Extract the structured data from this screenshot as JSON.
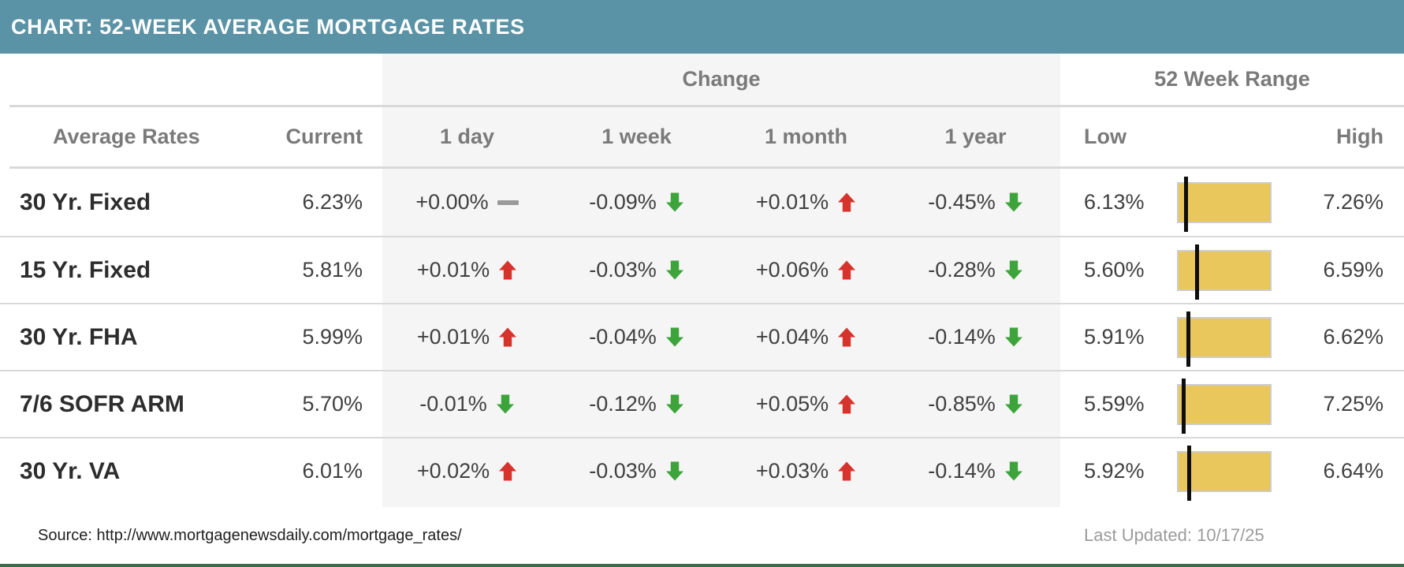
{
  "title": "CHART: 52-WEEK AVERAGE MORTGAGE RATES",
  "colors": {
    "header_bg": "#5a92a6",
    "panel_gray": "#f5f5f5",
    "line_gray": "#d9d9d9",
    "header_text": "#7a7a7a",
    "value_text": "#404040",
    "up_red": "#d7332d",
    "down_green": "#3da43b",
    "flat_dash_gray": "#9a9a9a",
    "range_bar_yellow": "#e9c75c",
    "bottom_rule_green": "#3a6b4b",
    "muted_text": "#9b9b9b"
  },
  "table": {
    "group_headers": {
      "change": "Change",
      "range": "52 Week Range"
    },
    "columns": {
      "name": "Average Rates",
      "current": "Current",
      "day": "1 day",
      "week": "1 week",
      "month": "1 month",
      "year": "1 year",
      "low": "Low",
      "high": "High"
    },
    "rows": [
      {
        "name": "30 Yr. Fixed",
        "current": "6.23%",
        "current_value": 6.23,
        "changes": [
          {
            "value": "+0.00%",
            "dir": "flat"
          },
          {
            "value": "-0.09%",
            "dir": "down"
          },
          {
            "value": "+0.01%",
            "dir": "up"
          },
          {
            "value": "-0.45%",
            "dir": "down"
          }
        ],
        "low": "6.13%",
        "low_value": 6.13,
        "high": "7.26%",
        "high_value": 7.26
      },
      {
        "name": "15 Yr. Fixed",
        "current": "5.81%",
        "current_value": 5.81,
        "changes": [
          {
            "value": "+0.01%",
            "dir": "up"
          },
          {
            "value": "-0.03%",
            "dir": "down"
          },
          {
            "value": "+0.06%",
            "dir": "up"
          },
          {
            "value": "-0.28%",
            "dir": "down"
          }
        ],
        "low": "5.60%",
        "low_value": 5.6,
        "high": "6.59%",
        "high_value": 6.59
      },
      {
        "name": "30 Yr. FHA",
        "current": "5.99%",
        "current_value": 5.99,
        "changes": [
          {
            "value": "+0.01%",
            "dir": "up"
          },
          {
            "value": "-0.04%",
            "dir": "down"
          },
          {
            "value": "+0.04%",
            "dir": "up"
          },
          {
            "value": "-0.14%",
            "dir": "down"
          }
        ],
        "low": "5.91%",
        "low_value": 5.91,
        "high": "6.62%",
        "high_value": 6.62
      },
      {
        "name": "7/6 SOFR ARM",
        "current": "5.70%",
        "current_value": 5.7,
        "changes": [
          {
            "value": "-0.01%",
            "dir": "down"
          },
          {
            "value": "-0.12%",
            "dir": "down"
          },
          {
            "value": "+0.05%",
            "dir": "up"
          },
          {
            "value": "-0.85%",
            "dir": "down"
          }
        ],
        "low": "5.59%",
        "low_value": 5.59,
        "high": "7.25%",
        "high_value": 7.25
      },
      {
        "name": "30 Yr. VA",
        "current": "6.01%",
        "current_value": 6.01,
        "changes": [
          {
            "value": "+0.02%",
            "dir": "up"
          },
          {
            "value": "-0.03%",
            "dir": "down"
          },
          {
            "value": "+0.03%",
            "dir": "up"
          },
          {
            "value": "-0.14%",
            "dir": "down"
          }
        ],
        "low": "5.92%",
        "low_value": 5.92,
        "high": "6.64%",
        "high_value": 6.64
      }
    ]
  },
  "footer": {
    "source": "Source: http://www.mortgagenewsdaily.com/mortgage_rates/",
    "last_updated": "Last Updated: 10/17/25"
  },
  "chart_data": {
    "type": "table",
    "title": "CHART: 52-WEEK AVERAGE MORTGAGE RATES",
    "column_groups": [
      "",
      "",
      "Change",
      "Change",
      "Change",
      "Change",
      "52 Week Range",
      "52 Week Range"
    ],
    "columns": [
      "Average Rates",
      "Current",
      "1 day",
      "1 week",
      "1 month",
      "1 year",
      "Low",
      "High"
    ],
    "rows": [
      [
        "30 Yr. Fixed",
        "6.23%",
        "+0.00%",
        "-0.09%",
        "+0.01%",
        "-0.45%",
        "6.13%",
        "7.26%"
      ],
      [
        "15 Yr. Fixed",
        "5.81%",
        "+0.01%",
        "-0.03%",
        "+0.06%",
        "-0.28%",
        "5.60%",
        "6.59%"
      ],
      [
        "30 Yr. FHA",
        "5.99%",
        "+0.01%",
        "-0.04%",
        "+0.04%",
        "-0.14%",
        "5.91%",
        "6.62%"
      ],
      [
        "7/6 SOFR ARM",
        "5.70%",
        "-0.01%",
        "-0.12%",
        "+0.05%",
        "-0.85%",
        "5.59%",
        "7.25%"
      ],
      [
        "30 Yr. VA",
        "6.01%",
        "+0.02%",
        "-0.03%",
        "+0.03%",
        "-0.14%",
        "5.92%",
        "6.64%"
      ]
    ],
    "change_directions": [
      [
        "flat",
        "down",
        "up",
        "down"
      ],
      [
        "up",
        "down",
        "up",
        "down"
      ],
      [
        "up",
        "down",
        "up",
        "down"
      ],
      [
        "down",
        "down",
        "up",
        "down"
      ],
      [
        "up",
        "down",
        "up",
        "down"
      ]
    ],
    "range_bars": [
      {
        "low": 6.13,
        "high": 7.26,
        "current": 6.23
      },
      {
        "low": 5.6,
        "high": 6.59,
        "current": 5.81
      },
      {
        "low": 5.91,
        "high": 6.62,
        "current": 5.99
      },
      {
        "low": 5.59,
        "high": 7.25,
        "current": 5.7
      },
      {
        "low": 5.92,
        "high": 6.64,
        "current": 6.01
      }
    ],
    "source": "Source: http://www.mortgagenewsdaily.com/mortgage_rates/",
    "last_updated": "Last Updated: 10/17/25"
  }
}
